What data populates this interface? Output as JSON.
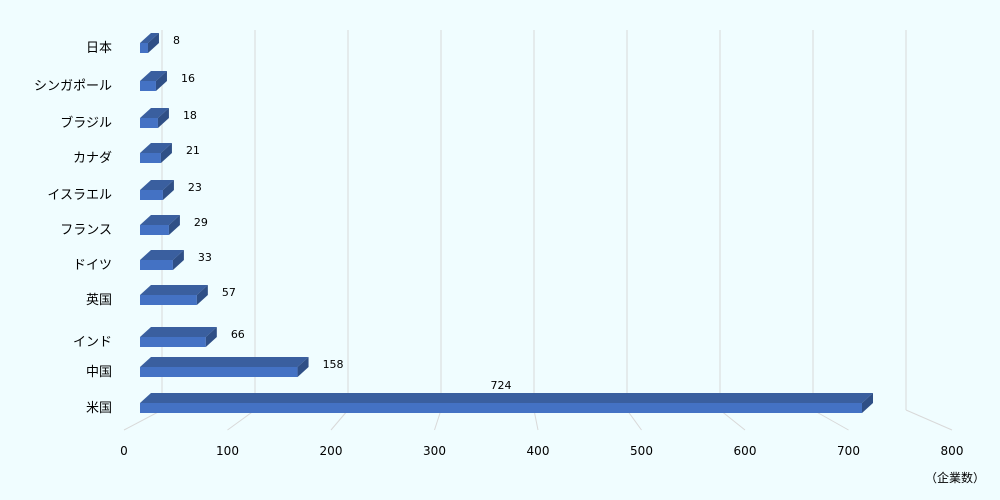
{
  "chart_data": {
    "type": "bar",
    "orientation": "horizontal",
    "style": "3d",
    "categories": [
      "日本",
      "シンガポール",
      "ブラジル",
      "カナダ",
      "イスラエル",
      "フランス",
      "ドイツ",
      "英国",
      "インド",
      "中国",
      "米国"
    ],
    "values": [
      8,
      16,
      18,
      21,
      23,
      29,
      33,
      57,
      66,
      158,
      724
    ],
    "xlim": [
      0,
      800
    ],
    "xticks": [
      0,
      100,
      200,
      300,
      400,
      500,
      600,
      700,
      800
    ],
    "xlabel": "",
    "ylabel": "",
    "unit_label": "（企業数）",
    "grid": "vertical",
    "legend": "none",
    "colors": {
      "bar_front": "#4472c4",
      "bar_top": "#3a5f9f",
      "bar_side": "#2f4f86",
      "grid": "#d9d9d9",
      "background": "#f0fdff"
    }
  }
}
